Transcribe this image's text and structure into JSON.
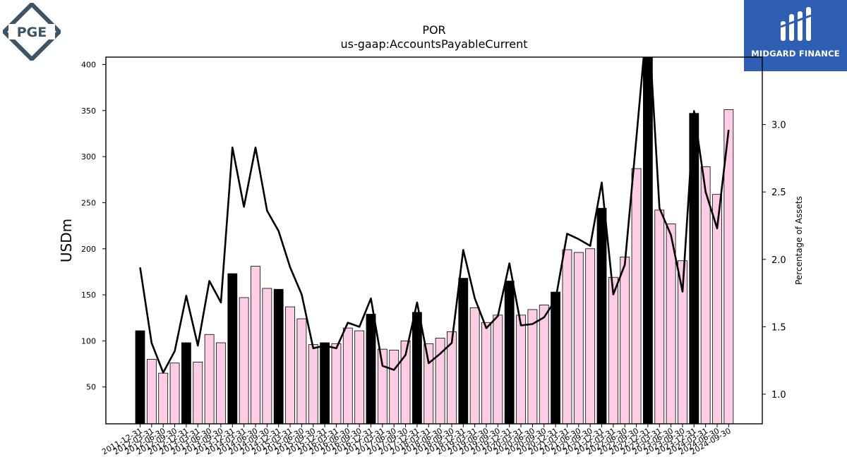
{
  "header": {
    "ticker": "POR",
    "concept": "us-gaap:AccountsPayableCurrent"
  },
  "logos": {
    "left_text": "PGE",
    "right_text": "MIDGARD FINANCE",
    "right_bg": "#2f5fb3",
    "left_color": "#3d5366"
  },
  "chart_data": {
    "type": "bar",
    "ylabel": "USDm",
    "y2label": "Percentage of Assets",
    "ylim": [
      10,
      408
    ],
    "y2lim": [
      0.78,
      3.5
    ],
    "yticks": [
      50,
      100,
      150,
      200,
      250,
      300,
      350,
      400
    ],
    "y2ticks": [
      1.0,
      1.5,
      2.0,
      2.5,
      3.0
    ],
    "bar_colors": {
      "year_end": "#000000",
      "quarter": "#fccde5"
    },
    "line_color": "#000000",
    "categories": [
      "2011-12-31",
      "2012-03-31",
      "2012-06-30",
      "2012-09-30",
      "2012-12-31",
      "2013-03-31",
      "2013-06-30",
      "2013-09-30",
      "2013-12-31",
      "2014-03-31",
      "2014-06-30",
      "2014-09-30",
      "2014-12-31",
      "2015-03-31",
      "2015-06-30",
      "2015-09-30",
      "2015-12-31",
      "2016-03-31",
      "2016-06-30",
      "2016-09-30",
      "2016-12-31",
      "2017-03-31",
      "2017-06-30",
      "2017-09-30",
      "2017-12-31",
      "2018-03-31",
      "2018-06-30",
      "2018-09-30",
      "2018-12-31",
      "2019-03-31",
      "2019-06-30",
      "2019-09-30",
      "2019-12-31",
      "2020-03-31",
      "2020-06-30",
      "2020-09-30",
      "2020-12-31",
      "2021-03-31",
      "2021-06-30",
      "2021-09-30",
      "2021-12-31",
      "2022-03-31",
      "2022-06-30",
      "2022-09-30",
      "2022-12-31",
      "2023-03-31",
      "2023-06-30",
      "2023-09-30",
      "2023-12-31",
      "2024-03-31",
      "2024-06-30",
      "2024-09-30"
    ],
    "series": [
      {
        "kind": "bar",
        "values": [
          111,
          80,
          65,
          76,
          98,
          77,
          107,
          98,
          173,
          147,
          181,
          157,
          156,
          137,
          124,
          96,
          98,
          97,
          114,
          111,
          129,
          91,
          90,
          100,
          131,
          97,
          103,
          110,
          168,
          136,
          120,
          128,
          165,
          128,
          134,
          139,
          153,
          199,
          196,
          200,
          244,
          169,
          191,
          287,
          408,
          242,
          227,
          187,
          347,
          289,
          259,
          351
        ]
      },
      {
        "kind": "line",
        "axis": "right",
        "values": [
          1.94,
          1.38,
          1.16,
          1.32,
          1.73,
          1.36,
          1.84,
          1.68,
          2.83,
          2.39,
          2.83,
          2.36,
          2.21,
          1.94,
          1.74,
          1.34,
          1.36,
          1.34,
          1.53,
          1.5,
          1.71,
          1.21,
          1.18,
          1.29,
          1.68,
          1.23,
          1.3,
          1.38,
          2.07,
          1.71,
          1.49,
          1.58,
          1.97,
          1.51,
          1.52,
          1.57,
          1.7,
          2.19,
          2.15,
          2.1,
          2.57,
          1.74,
          1.96,
          2.9,
          3.85,
          2.38,
          2.18,
          1.76,
          3.1,
          2.5,
          2.23,
          2.96
        ]
      }
    ]
  }
}
